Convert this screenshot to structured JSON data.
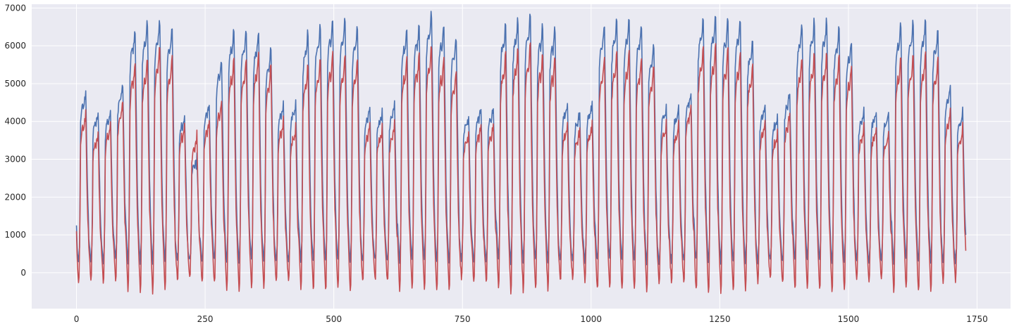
{
  "chart_data": {
    "type": "line",
    "title": "",
    "xlabel": "",
    "ylabel": "",
    "xlim": [
      -87,
      1815
    ],
    "ylim": [
      -950,
      7100
    ],
    "xticks": [
      0,
      250,
      500,
      750,
      1000,
      1250,
      1500,
      1750
    ],
    "yticks": [
      0,
      1000,
      2000,
      3000,
      4000,
      5000,
      6000,
      7000
    ],
    "grid": true,
    "legend": "none",
    "n_points": 1729,
    "colors": {
      "background": "#eaeaf2",
      "grid": "#ffffff",
      "actual": "#4c72b0",
      "predicted": "#c44e52"
    },
    "series": [
      {
        "color": "#4c72b0",
        "daily_profile": {
          "hours": [
            0,
            2,
            4,
            6,
            7,
            8,
            10,
            12,
            14,
            16,
            18,
            20,
            22,
            24
          ],
          "values": [
            1100,
            600,
            300,
            800,
            2400,
            4300,
            4700,
            4800,
            4750,
            5000,
            5200,
            3600,
            2000,
            1100
          ]
        },
        "daily_peaks": [
          4800,
          4300,
          4300,
          5000,
          6400,
          6600,
          6600,
          6400,
          4200,
          3100,
          4500,
          5600,
          6400,
          6400,
          6300,
          5900,
          4500,
          4500,
          6300,
          6500,
          6600,
          6600,
          6500,
          4400,
          4300,
          4500,
          6400,
          6500,
          6800,
          6500,
          6200,
          4200,
          4400,
          4400,
          6500,
          6600,
          6700,
          6500,
          6400,
          4500,
          4300,
          4500,
          6500,
          6600,
          6600,
          6500,
          6000,
          4400,
          4400,
          4800,
          6700,
          6700,
          6600,
          6600,
          6100,
          4500,
          4200,
          4800,
          6500,
          6600,
          6600,
          6400,
          6100,
          4300,
          4300,
          4300,
          6500,
          6600,
          6600,
          6400,
          4900,
          4300,
          4500
        ],
        "first_value": 1250,
        "last_value": 1000
      },
      {
        "color": "#c44e52",
        "daily_profile": {
          "hours": [
            0,
            2,
            4,
            5,
            7,
            8,
            10,
            12,
            14,
            16,
            18,
            20,
            22,
            24
          ],
          "values": [
            900,
            200,
            -350,
            -200,
            2000,
            3900,
            4300,
            4500,
            4400,
            4700,
            5000,
            3000,
            1500,
            900
          ]
        },
        "daily_peaks": [
          4300,
          3800,
          4000,
          4600,
          5600,
          5700,
          6000,
          5700,
          4000,
          3700,
          4100,
          4600,
          5700,
          5700,
          5800,
          5500,
          4100,
          3900,
          5500,
          5700,
          5800,
          5700,
          5700,
          4000,
          3900,
          4000,
          5700,
          5800,
          6000,
          5700,
          5400,
          3800,
          4000,
          4000,
          5800,
          5900,
          6000,
          5800,
          5700,
          4000,
          3900,
          4000,
          5700,
          5800,
          5800,
          5700,
          5500,
          4000,
          4000,
          4500,
          6000,
          6000,
          5900,
          5800,
          5500,
          4100,
          3800,
          4300,
          5700,
          5800,
          5800,
          5700,
          5500,
          3900,
          3900,
          3800,
          5700,
          5800,
          5800,
          5700,
          4300,
          3900,
          3700
        ],
        "first_value": 1100,
        "last_value": 580
      }
    ]
  }
}
